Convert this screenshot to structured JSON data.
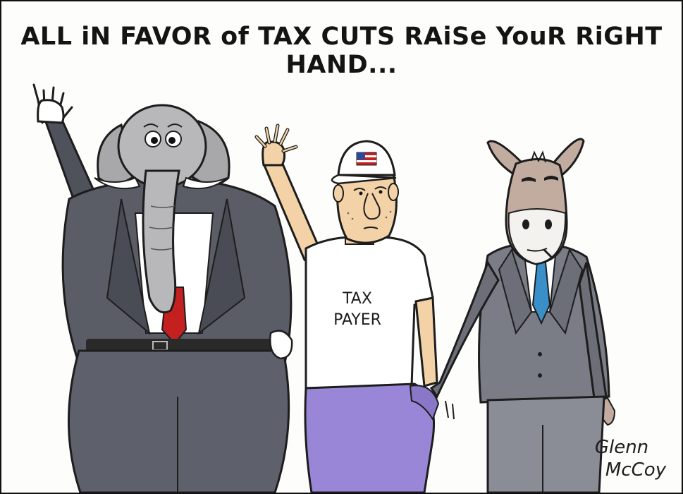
{
  "caption": "ALL iN FAVOR of TAX CUTS RAiSe YouR RiGHT HAND...",
  "shirt_text": {
    "line1": "TAX",
    "line2": "PAYER"
  },
  "signature": {
    "line1": "Glenn",
    "line2": "McCoy"
  },
  "colors": {
    "suit": "#5a5c66",
    "elephant_skin": "#b8b8ba",
    "red_tie": "#c3201f",
    "blue_tie": "#3a8fc8",
    "pants_purple": "#9a86d6",
    "skin": "#f2d2a6",
    "donkey": "#c2aca0"
  }
}
